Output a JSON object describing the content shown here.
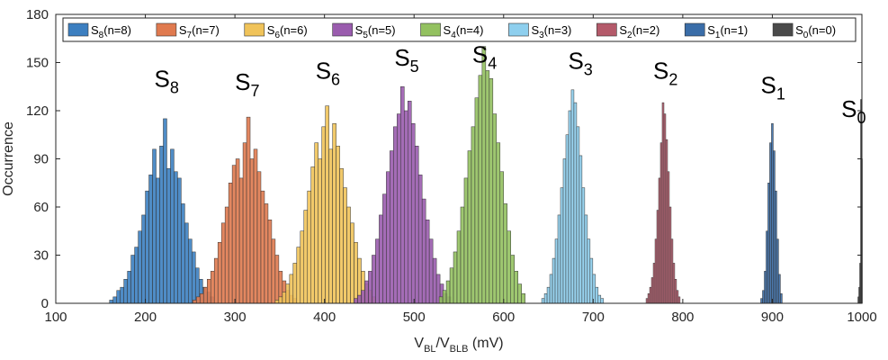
{
  "chart_data": {
    "type": "histogram",
    "xlabel": {
      "base": "V",
      "sub1": "BL",
      "mid": "/V",
      "sub2": "BLB",
      "unit": " (mV)"
    },
    "ylabel": "Occurrence",
    "xlim": [
      100,
      1000
    ],
    "ylim": [
      0,
      180
    ],
    "xticks": [
      "100",
      "200",
      "300",
      "400",
      "500",
      "600",
      "700",
      "800",
      "900",
      "1000"
    ],
    "yticks": [
      "0",
      "30",
      "60",
      "90",
      "120",
      "150",
      "180"
    ],
    "grid": false,
    "legend_position": "top",
    "series": [
      {
        "name": "S8(n=8)",
        "label": "S",
        "sub": "8",
        "n": "8",
        "color": "#3c7fc0",
        "center": 222,
        "sigma": 20,
        "peak": 115,
        "hist": [
          [
            162,
            2
          ],
          [
            166,
            4
          ],
          [
            170,
            8
          ],
          [
            174,
            10
          ],
          [
            178,
            15
          ],
          [
            182,
            20
          ],
          [
            186,
            30
          ],
          [
            190,
            35
          ],
          [
            194,
            45
          ],
          [
            198,
            55
          ],
          [
            202,
            70
          ],
          [
            206,
            80
          ],
          [
            210,
            96
          ],
          [
            214,
            78
          ],
          [
            218,
            98
          ],
          [
            222,
            115
          ],
          [
            226,
            84
          ],
          [
            230,
            96
          ],
          [
            234,
            82
          ],
          [
            238,
            78
          ],
          [
            242,
            62
          ],
          [
            246,
            50
          ],
          [
            250,
            40
          ],
          [
            254,
            32
          ],
          [
            258,
            22
          ],
          [
            262,
            15
          ],
          [
            266,
            10
          ],
          [
            270,
            7
          ],
          [
            274,
            4
          ]
        ]
      },
      {
        "name": "S7(n=7)",
        "label": "S",
        "sub": "7",
        "n": "7",
        "color": "#e07a4f",
        "center": 315,
        "sigma": 20,
        "peak": 116,
        "hist": [
          [
            255,
            2
          ],
          [
            259,
            4
          ],
          [
            263,
            6
          ],
          [
            267,
            10
          ],
          [
            271,
            15
          ],
          [
            275,
            20
          ],
          [
            279,
            28
          ],
          [
            283,
            38
          ],
          [
            287,
            50
          ],
          [
            291,
            60
          ],
          [
            295,
            75
          ],
          [
            299,
            86
          ],
          [
            303,
            90
          ],
          [
            307,
            78
          ],
          [
            311,
            100
          ],
          [
            315,
            116
          ],
          [
            319,
            90
          ],
          [
            323,
            96
          ],
          [
            327,
            82
          ],
          [
            331,
            70
          ],
          [
            335,
            62
          ],
          [
            339,
            52
          ],
          [
            343,
            40
          ],
          [
            347,
            30
          ],
          [
            351,
            20
          ],
          [
            355,
            14
          ],
          [
            359,
            8
          ],
          [
            363,
            5
          ],
          [
            367,
            3
          ]
        ]
      },
      {
        "name": "S6(n=6)",
        "label": "S",
        "sub": "6",
        "n": "6",
        "color": "#f0c35a",
        "center": 402,
        "sigma": 20,
        "peak": 123,
        "hist": [
          [
            347,
            2
          ],
          [
            351,
            4
          ],
          [
            355,
            7
          ],
          [
            359,
            12
          ],
          [
            363,
            18
          ],
          [
            367,
            25
          ],
          [
            371,
            35
          ],
          [
            375,
            45
          ],
          [
            379,
            58
          ],
          [
            383,
            70
          ],
          [
            387,
            85
          ],
          [
            391,
            100
          ],
          [
            395,
            90
          ],
          [
            399,
            110
          ],
          [
            403,
            123
          ],
          [
            407,
            96
          ],
          [
            411,
            112
          ],
          [
            415,
            98
          ],
          [
            419,
            84
          ],
          [
            423,
            72
          ],
          [
            427,
            60
          ],
          [
            431,
            50
          ],
          [
            435,
            38
          ],
          [
            439,
            28
          ],
          [
            443,
            20
          ],
          [
            447,
            12
          ],
          [
            451,
            8
          ],
          [
            455,
            4
          ]
        ]
      },
      {
        "name": "S5(n=5)",
        "label": "S",
        "sub": "5",
        "n": "5",
        "color": "#9a5cae",
        "center": 490,
        "sigma": 20,
        "peak": 135,
        "hist": [
          [
            435,
            3
          ],
          [
            439,
            5
          ],
          [
            443,
            8
          ],
          [
            447,
            14
          ],
          [
            451,
            20
          ],
          [
            455,
            30
          ],
          [
            459,
            40
          ],
          [
            463,
            55
          ],
          [
            467,
            68
          ],
          [
            471,
            82
          ],
          [
            475,
            95
          ],
          [
            479,
            110
          ],
          [
            483,
            118
          ],
          [
            487,
            135
          ],
          [
            491,
            120
          ],
          [
            495,
            126
          ],
          [
            499,
            112
          ],
          [
            503,
            98
          ],
          [
            507,
            80
          ],
          [
            511,
            65
          ],
          [
            515,
            52
          ],
          [
            519,
            40
          ],
          [
            523,
            28
          ],
          [
            527,
            18
          ],
          [
            531,
            12
          ],
          [
            535,
            6
          ],
          [
            539,
            4
          ]
        ]
      },
      {
        "name": "S4(n=4)",
        "label": "S",
        "sub": "4",
        "n": "4",
        "color": "#93c160",
        "center": 578,
        "sigma": 18,
        "peak": 160,
        "hist": [
          [
            530,
            4
          ],
          [
            534,
            8
          ],
          [
            538,
            14
          ],
          [
            542,
            22
          ],
          [
            546,
            32
          ],
          [
            550,
            45
          ],
          [
            554,
            60
          ],
          [
            558,
            78
          ],
          [
            562,
            95
          ],
          [
            566,
            110
          ],
          [
            570,
            128
          ],
          [
            574,
            142
          ],
          [
            578,
            160
          ],
          [
            582,
            145
          ],
          [
            586,
            140
          ],
          [
            590,
            118
          ],
          [
            594,
            100
          ],
          [
            598,
            82
          ],
          [
            602,
            62
          ],
          [
            606,
            45
          ],
          [
            610,
            30
          ],
          [
            614,
            20
          ],
          [
            618,
            12
          ],
          [
            622,
            6
          ]
        ]
      },
      {
        "name": "S3(n=3)",
        "label": "S",
        "sub": "3",
        "n": "3",
        "color": "#8ecfee",
        "center": 680,
        "sigma": 9,
        "peak": 133,
        "hist": [
          [
            644,
            3
          ],
          [
            647,
            6
          ],
          [
            650,
            10
          ],
          [
            653,
            18
          ],
          [
            656,
            28
          ],
          [
            659,
            40
          ],
          [
            662,
            55
          ],
          [
            665,
            72
          ],
          [
            668,
            90
          ],
          [
            671,
            105
          ],
          [
            674,
            120
          ],
          [
            677,
            133
          ],
          [
            680,
            125
          ],
          [
            683,
            110
          ],
          [
            686,
            92
          ],
          [
            689,
            72
          ],
          [
            692,
            55
          ],
          [
            695,
            40
          ],
          [
            698,
            28
          ],
          [
            701,
            18
          ],
          [
            704,
            10
          ],
          [
            707,
            5
          ],
          [
            710,
            3
          ]
        ]
      },
      {
        "name": "S2(n=2)",
        "label": "S",
        "sub": "2",
        "n": "2",
        "color": "#b45a6a",
        "center": 780,
        "sigma": 6,
        "peak": 125,
        "hist": [
          [
            760,
            3
          ],
          [
            762,
            6
          ],
          [
            764,
            10
          ],
          [
            766,
            16
          ],
          [
            768,
            25
          ],
          [
            770,
            40
          ],
          [
            772,
            58
          ],
          [
            774,
            78
          ],
          [
            776,
            100
          ],
          [
            778,
            125
          ],
          [
            780,
            118
          ],
          [
            782,
            102
          ],
          [
            784,
            82
          ],
          [
            786,
            60
          ],
          [
            788,
            40
          ],
          [
            790,
            25
          ],
          [
            792,
            15
          ],
          [
            794,
            8
          ],
          [
            796,
            4
          ]
        ]
      },
      {
        "name": "S1(n=1)",
        "label": "S",
        "sub": "1",
        "n": "1",
        "color": "#3a6da8",
        "center": 900,
        "sigma": 4,
        "peak": 112,
        "hist": [
          [
            888,
            3
          ],
          [
            890,
            8
          ],
          [
            892,
            20
          ],
          [
            894,
            45
          ],
          [
            896,
            75
          ],
          [
            898,
            100
          ],
          [
            900,
            112
          ],
          [
            902,
            95
          ],
          [
            904,
            70
          ],
          [
            906,
            40
          ],
          [
            908,
            18
          ],
          [
            910,
            6
          ]
        ]
      },
      {
        "name": "S0(n=0)",
        "label": "S",
        "sub": "0",
        "n": "0",
        "color": "#4a4a4a",
        "center": 999,
        "sigma": 1,
        "peak": 127,
        "hist": [
          [
            996,
            4
          ],
          [
            997,
            10
          ],
          [
            998,
            25
          ],
          [
            999,
            127
          ],
          [
            1000,
            90
          ]
        ]
      }
    ],
    "peak_labels": [
      {
        "label": "S",
        "sub": "8",
        "x": 210,
        "y": 135
      },
      {
        "label": "S",
        "sub": "7",
        "x": 300,
        "y": 133
      },
      {
        "label": "S",
        "sub": "6",
        "x": 390,
        "y": 140
      },
      {
        "label": "S",
        "sub": "5",
        "x": 478,
        "y": 148
      },
      {
        "label": "S",
        "sub": "4",
        "x": 565,
        "y": 150
      },
      {
        "label": "S",
        "sub": "3",
        "x": 672,
        "y": 146
      },
      {
        "label": "S",
        "sub": "2",
        "x": 767,
        "y": 140
      },
      {
        "label": "S",
        "sub": "1",
        "x": 887,
        "y": 131
      },
      {
        "label": "S",
        "sub": "0",
        "x": 977,
        "y": 116
      }
    ]
  }
}
